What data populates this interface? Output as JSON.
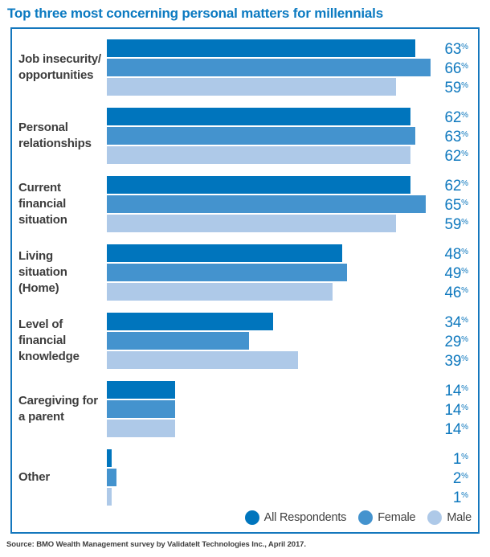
{
  "title": "Top three most concerning personal matters for millennials",
  "source": "Source: BMO Wealth Management survey by ValidateIt Technologies Inc., April 2017.",
  "colors": {
    "title_text": "#0b7ac1",
    "box_border": "#1477bd",
    "value_text": "#0e78be",
    "label_text": "#3d3d3d"
  },
  "chart_data": {
    "type": "bar",
    "orientation": "horizontal",
    "title": "Top three most concerning personal matters for millennials",
    "unit": "%",
    "value_suffix": "%",
    "xlim": [
      0,
      66
    ],
    "grid": false,
    "legend_position": "bottom-right",
    "categories": [
      "Job insecurity/\nopportunities",
      "Personal\nrelationships",
      "Current\nfinancial\nsituation",
      "Living\nsituation\n(Home)",
      "Level of\nfinancial\nknowledge",
      "Caregiving for\na parent",
      "Other"
    ],
    "series": [
      {
        "name": "All Respondents",
        "color": "#0075bd",
        "values": [
          63,
          62,
          62,
          48,
          34,
          14,
          1
        ]
      },
      {
        "name": "Female",
        "color": "#4493ce",
        "values": [
          66,
          63,
          65,
          49,
          29,
          14,
          2
        ]
      },
      {
        "name": "Male",
        "color": "#aec9e8",
        "values": [
          59,
          62,
          59,
          46,
          39,
          14,
          1
        ]
      }
    ]
  }
}
